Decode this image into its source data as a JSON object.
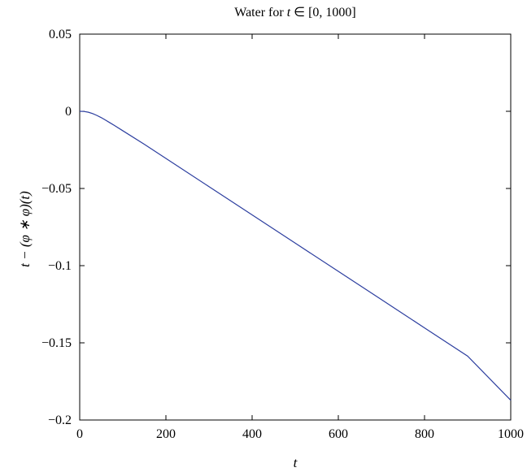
{
  "chart_data": {
    "type": "line",
    "title": "Water for t ∈ [0, 1000]",
    "xlabel": "t",
    "ylabel": "t − (φ ∗ φ)(t)",
    "xlim": [
      0,
      1000
    ],
    "ylim": [
      -0.2,
      0.05
    ],
    "xticks": [
      0,
      200,
      400,
      600,
      800,
      1000
    ],
    "xtick_labels": [
      "0",
      "200",
      "400",
      "600",
      "800",
      "1000"
    ],
    "yticks": [
      0.05,
      0,
      -0.05,
      -0.1,
      -0.15,
      -0.2
    ],
    "ytick_labels": [
      "0.05",
      "0",
      "−0.05",
      "−0.1",
      "−0.15",
      "−0.2"
    ],
    "grid": false,
    "series": [
      {
        "color": "#2c3e9f",
        "x": [
          0,
          10,
          20,
          30,
          40,
          50,
          60,
          70,
          80,
          100,
          150,
          200,
          300,
          400,
          500,
          600,
          700,
          800,
          900,
          1000
        ],
        "y": [
          0,
          -0.0001,
          -0.0006,
          -0.0015,
          -0.0027,
          -0.0041,
          -0.0057,
          -0.0074,
          -0.0091,
          -0.0126,
          -0.0214,
          -0.0305,
          -0.0488,
          -0.0671,
          -0.0854,
          -0.1037,
          -0.122,
          -0.1403,
          -0.1586,
          -0.1872
        ]
      }
    ]
  }
}
